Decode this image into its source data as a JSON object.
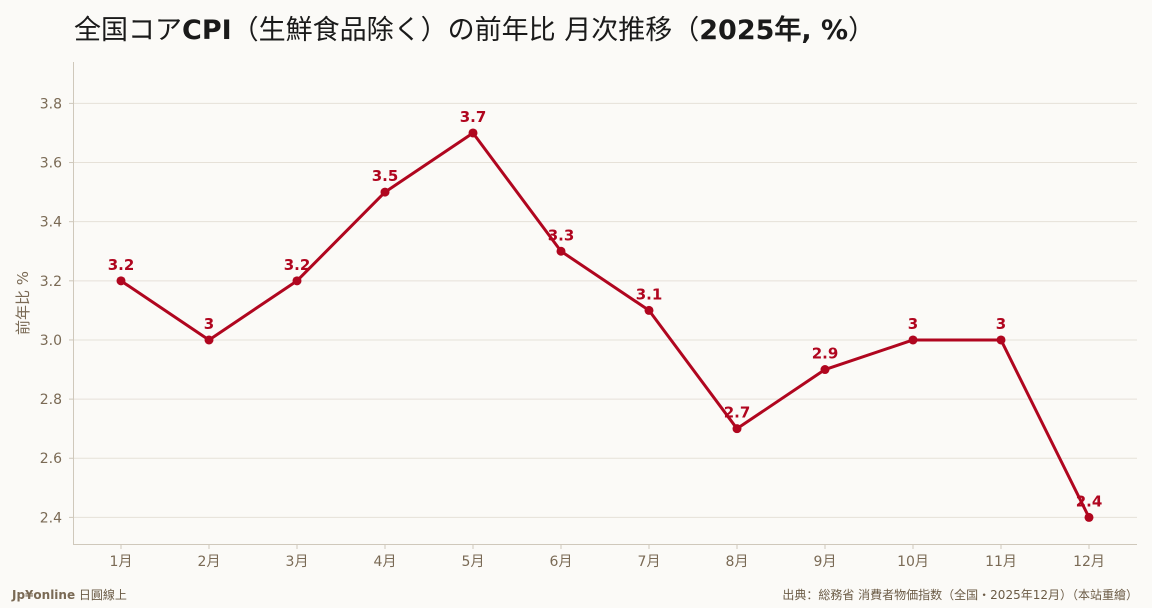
{
  "chart_data": {
    "type": "line",
    "title_prefix": "全国コア",
    "title_cpi": "CPI",
    "title_mid": "（生鮮食品除く）の前年比 月次推移（",
    "title_year": "2025年, %",
    "title_suffix": "）",
    "ylabel": "前年比 %",
    "categories": [
      "1月",
      "2月",
      "3月",
      "4月",
      "5月",
      "6月",
      "7月",
      "8月",
      "9月",
      "10月",
      "11月",
      "12月"
    ],
    "values": [
      3.2,
      3.0,
      3.2,
      3.5,
      3.7,
      3.3,
      3.1,
      2.7,
      2.9,
      3.0,
      3.0,
      2.4
    ],
    "data_labels": [
      "3.2",
      "3",
      "3.2",
      "3.5",
      "3.7",
      "3.3",
      "3.1",
      "2.7",
      "2.9",
      "3",
      "3",
      "2.4"
    ],
    "y_ticks": [
      "2.4",
      "2.6",
      "2.8",
      "3.0",
      "3.2",
      "3.4",
      "3.6",
      "3.8"
    ],
    "ylim": [
      2.31,
      3.94
    ],
    "grid": true,
    "line_color": "#b0061f"
  },
  "footer": {
    "brand": "Jp¥online",
    "brand_suffix": " 日圓線上",
    "source": "出典：総務省 消費者物価指数（全国・2025年12月）（本站重繪）"
  }
}
